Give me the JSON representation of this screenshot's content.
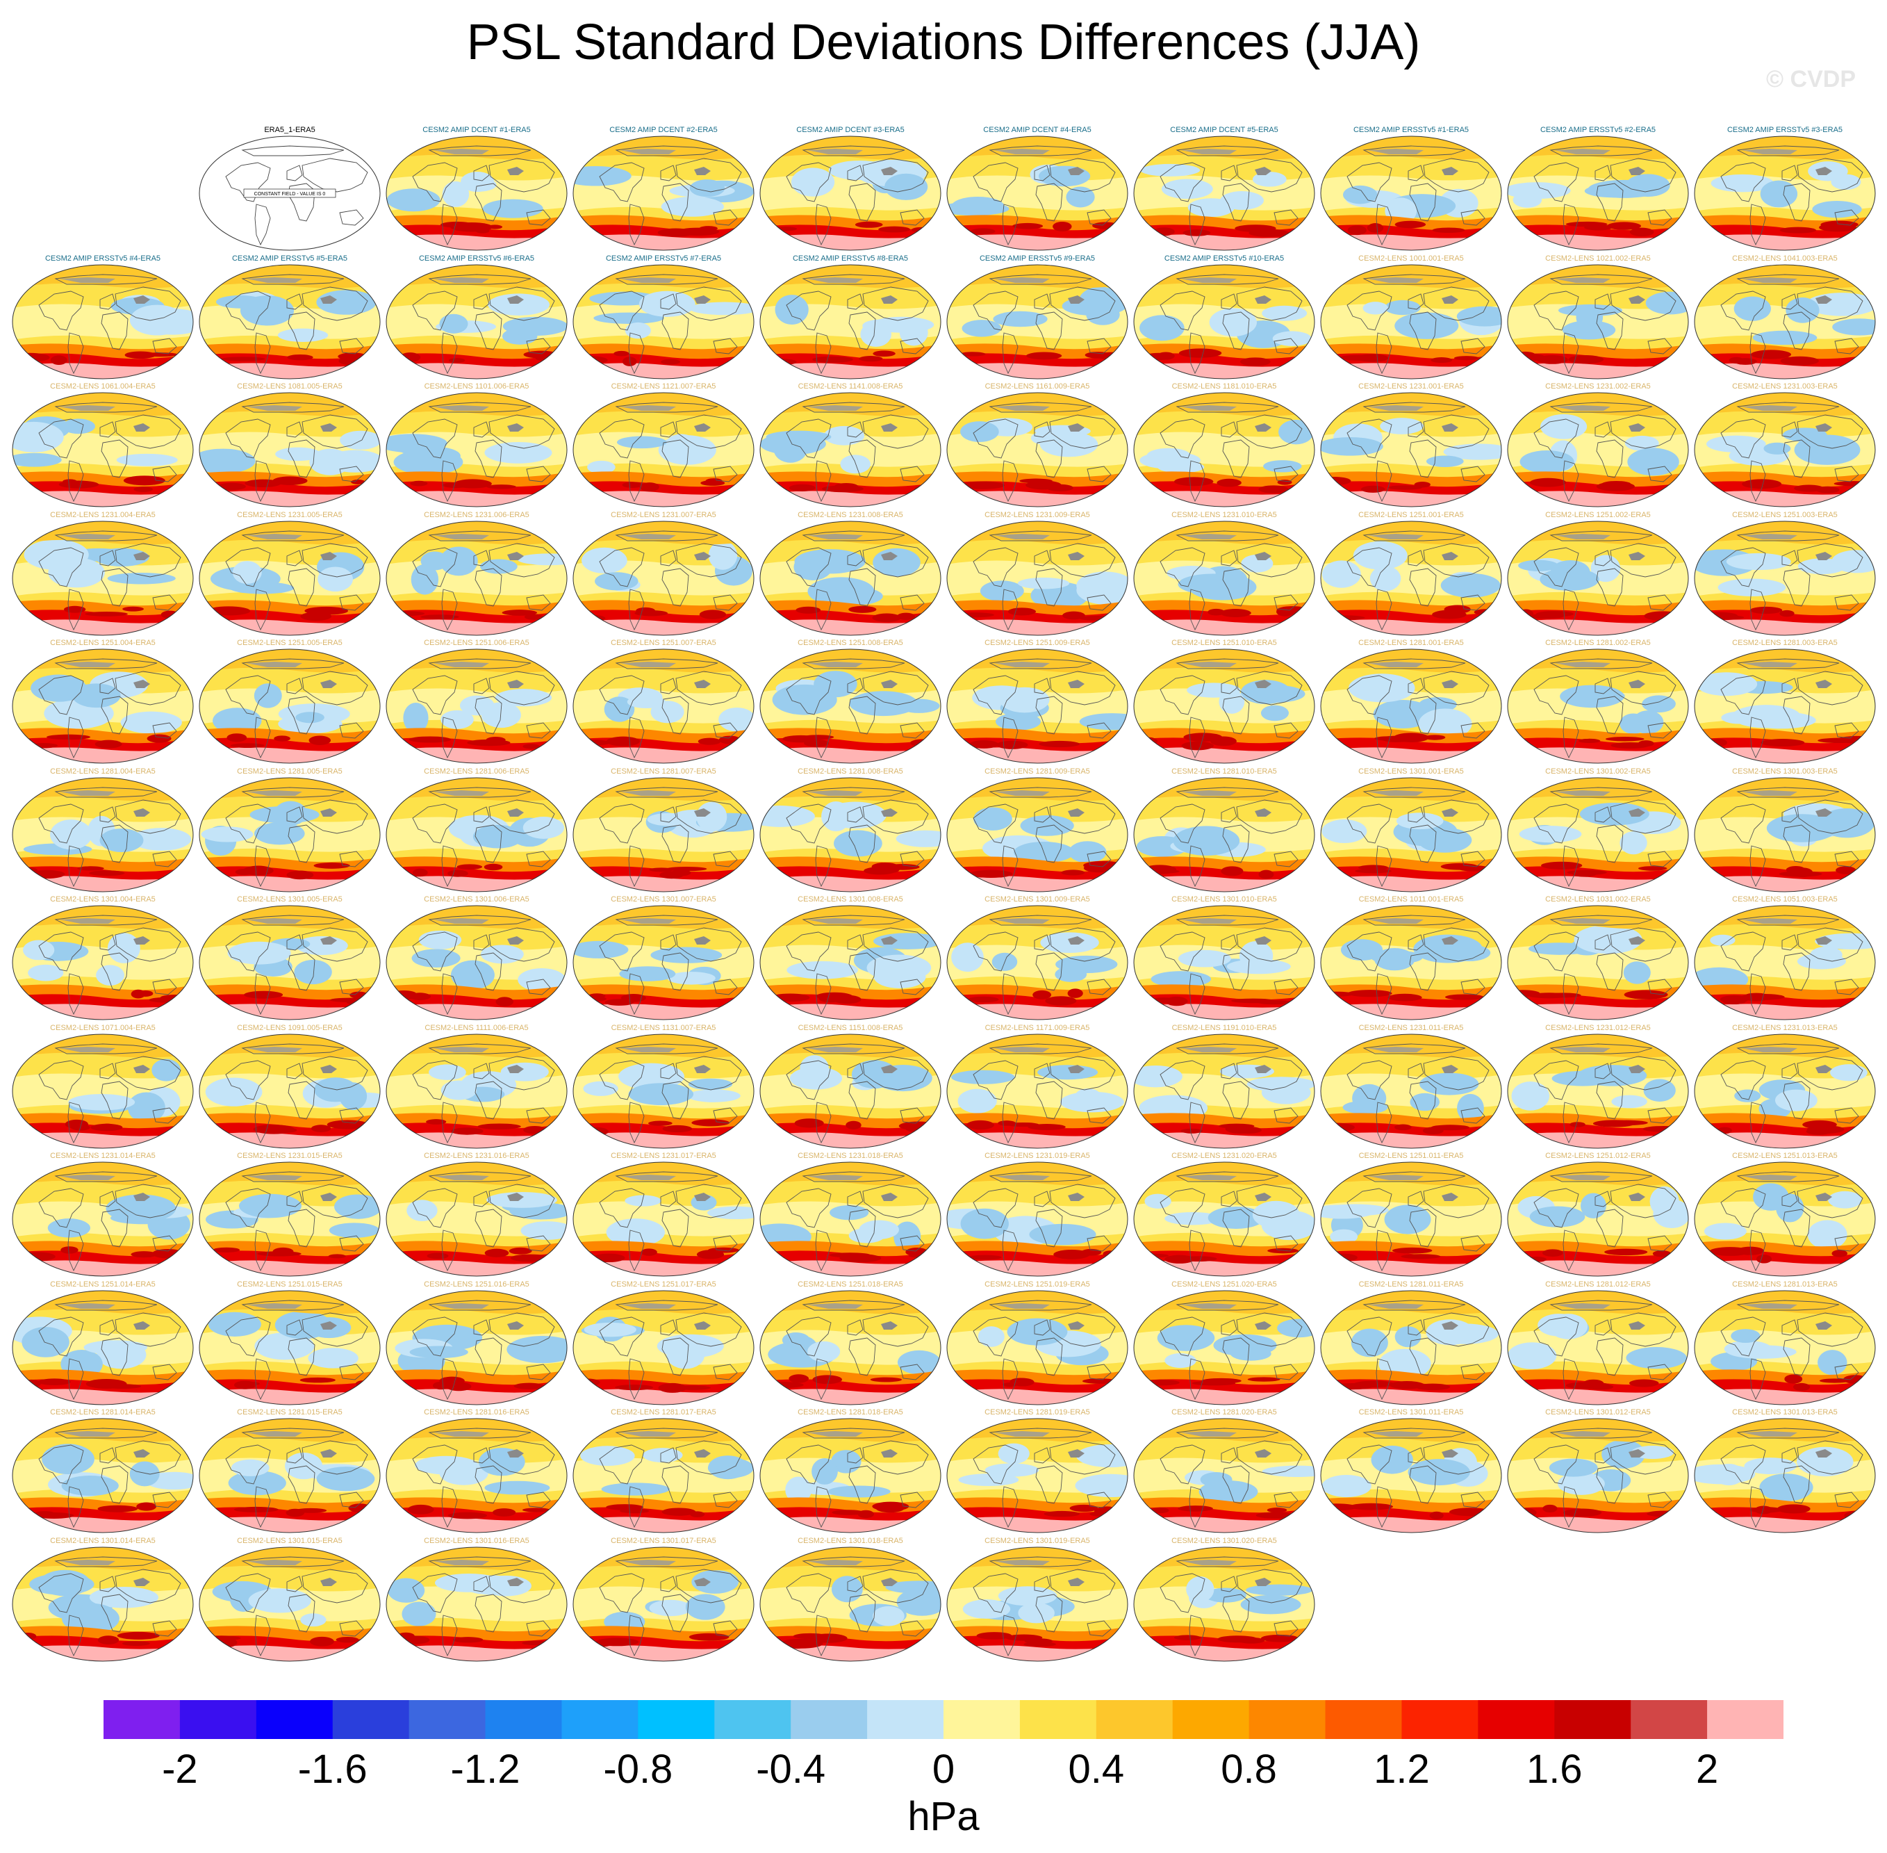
{
  "title": "PSL Standard Deviations Differences (JJA)",
  "copyright": "© CVDP",
  "units": "hPa",
  "constant_field_text": "CONSTANT FIELD - VALUE IS 0",
  "label_colors": {
    "obs": "#000000",
    "amip": "#1a6e8a",
    "lens": "#d9b56b"
  },
  "colorbar": {
    "colors": [
      "#7f1fef",
      "#3a0ff0",
      "#0a00fc",
      "#2a3fdc",
      "#3c67e0",
      "#1e82f0",
      "#1ea0fa",
      "#00c0ff",
      "#4ec4f0",
      "#9acdee",
      "#c4e4f8",
      "#fff59a",
      "#fde24a",
      "#fdc72c",
      "#fda800",
      "#fd8700",
      "#fd5a00",
      "#fc2300",
      "#e60000",
      "#c80000",
      "#d24646",
      "#ffb4b4"
    ],
    "tick_labels": [
      "-2",
      "-1.6",
      "-1.2",
      "-0.8",
      "-0.4",
      "0",
      "0.4",
      "0.8",
      "1.2",
      "1.6",
      "2"
    ],
    "tick_boundary_index": [
      1,
      3,
      5,
      7,
      9,
      11,
      13,
      15,
      17,
      19,
      21
    ]
  },
  "panels": [
    {
      "label": "ERA5_1-ERA5",
      "kind": "obs",
      "constant": true
    },
    {
      "label": "CESM2 AMIP DCENT #1-ERA5",
      "kind": "amip"
    },
    {
      "label": "CESM2 AMIP DCENT #2-ERA5",
      "kind": "amip"
    },
    {
      "label": "CESM2 AMIP DCENT #3-ERA5",
      "kind": "amip"
    },
    {
      "label": "CESM2 AMIP DCENT #4-ERA5",
      "kind": "amip"
    },
    {
      "label": "CESM2 AMIP DCENT #5-ERA5",
      "kind": "amip"
    },
    {
      "label": "CESM2 AMIP ERSSTv5 #1-ERA5",
      "kind": "amip"
    },
    {
      "label": "CESM2 AMIP ERSSTv5 #2-ERA5",
      "kind": "amip"
    },
    {
      "label": "CESM2 AMIP ERSSTv5 #3-ERA5",
      "kind": "amip"
    },
    {
      "label": "CESM2 AMIP ERSSTv5 #4-ERA5",
      "kind": "amip"
    },
    {
      "label": "CESM2 AMIP ERSSTv5 #5-ERA5",
      "kind": "amip"
    },
    {
      "label": "CESM2 AMIP ERSSTv5 #6-ERA5",
      "kind": "amip"
    },
    {
      "label": "CESM2 AMIP ERSSTv5 #7-ERA5",
      "kind": "amip"
    },
    {
      "label": "CESM2 AMIP ERSSTv5 #8-ERA5",
      "kind": "amip"
    },
    {
      "label": "CESM2 AMIP ERSSTv5 #9-ERA5",
      "kind": "amip"
    },
    {
      "label": "CESM2 AMIP ERSSTv5 #10-ERA5",
      "kind": "amip"
    },
    {
      "label": "CESM2-LENS 1001.001-ERA5",
      "kind": "lens"
    },
    {
      "label": "CESM2-LENS 1021.002-ERA5",
      "kind": "lens"
    },
    {
      "label": "CESM2-LENS 1041.003-ERA5",
      "kind": "lens"
    },
    {
      "label": "CESM2-LENS 1061.004-ERA5",
      "kind": "lens"
    },
    {
      "label": "CESM2-LENS 1081.005-ERA5",
      "kind": "lens"
    },
    {
      "label": "CESM2-LENS 1101.006-ERA5",
      "kind": "lens"
    },
    {
      "label": "CESM2-LENS 1121.007-ERA5",
      "kind": "lens"
    },
    {
      "label": "CESM2-LENS 1141.008-ERA5",
      "kind": "lens"
    },
    {
      "label": "CESM2-LENS 1161.009-ERA5",
      "kind": "lens"
    },
    {
      "label": "CESM2-LENS 1181.010-ERA5",
      "kind": "lens"
    },
    {
      "label": "CESM2-LENS 1231.001-ERA5",
      "kind": "lens"
    },
    {
      "label": "CESM2-LENS 1231.002-ERA5",
      "kind": "lens"
    },
    {
      "label": "CESM2-LENS 1231.003-ERA5",
      "kind": "lens"
    },
    {
      "label": "CESM2-LENS 1231.004-ERA5",
      "kind": "lens"
    },
    {
      "label": "CESM2-LENS 1231.005-ERA5",
      "kind": "lens"
    },
    {
      "label": "CESM2-LENS 1231.006-ERA5",
      "kind": "lens"
    },
    {
      "label": "CESM2-LENS 1231.007-ERA5",
      "kind": "lens"
    },
    {
      "label": "CESM2-LENS 1231.008-ERA5",
      "kind": "lens"
    },
    {
      "label": "CESM2-LENS 1231.009-ERA5",
      "kind": "lens"
    },
    {
      "label": "CESM2-LENS 1231.010-ERA5",
      "kind": "lens"
    },
    {
      "label": "CESM2-LENS 1251.001-ERA5",
      "kind": "lens"
    },
    {
      "label": "CESM2-LENS 1251.002-ERA5",
      "kind": "lens"
    },
    {
      "label": "CESM2-LENS 1251.003-ERA5",
      "kind": "lens"
    },
    {
      "label": "CESM2-LENS 1251.004-ERA5",
      "kind": "lens"
    },
    {
      "label": "CESM2-LENS 1251.005-ERA5",
      "kind": "lens"
    },
    {
      "label": "CESM2-LENS 1251.006-ERA5",
      "kind": "lens"
    },
    {
      "label": "CESM2-LENS 1251.007-ERA5",
      "kind": "lens"
    },
    {
      "label": "CESM2-LENS 1251.008-ERA5",
      "kind": "lens"
    },
    {
      "label": "CESM2-LENS 1251.009-ERA5",
      "kind": "lens"
    },
    {
      "label": "CESM2-LENS 1251.010-ERA5",
      "kind": "lens"
    },
    {
      "label": "CESM2-LENS 1281.001-ERA5",
      "kind": "lens"
    },
    {
      "label": "CESM2-LENS 1281.002-ERA5",
      "kind": "lens"
    },
    {
      "label": "CESM2-LENS 1281.003-ERA5",
      "kind": "lens"
    },
    {
      "label": "CESM2-LENS 1281.004-ERA5",
      "kind": "lens"
    },
    {
      "label": "CESM2-LENS 1281.005-ERA5",
      "kind": "lens"
    },
    {
      "label": "CESM2-LENS 1281.006-ERA5",
      "kind": "lens"
    },
    {
      "label": "CESM2-LENS 1281.007-ERA5",
      "kind": "lens"
    },
    {
      "label": "CESM2-LENS 1281.008-ERA5",
      "kind": "lens"
    },
    {
      "label": "CESM2-LENS 1281.009-ERA5",
      "kind": "lens"
    },
    {
      "label": "CESM2-LENS 1281.010-ERA5",
      "kind": "lens"
    },
    {
      "label": "CESM2-LENS 1301.001-ERA5",
      "kind": "lens"
    },
    {
      "label": "CESM2-LENS 1301.002-ERA5",
      "kind": "lens"
    },
    {
      "label": "CESM2-LENS 1301.003-ERA5",
      "kind": "lens"
    },
    {
      "label": "CESM2-LENS 1301.004-ERA5",
      "kind": "lens"
    },
    {
      "label": "CESM2-LENS 1301.005-ERA5",
      "kind": "lens"
    },
    {
      "label": "CESM2-LENS 1301.006-ERA5",
      "kind": "lens"
    },
    {
      "label": "CESM2-LENS 1301.007-ERA5",
      "kind": "lens"
    },
    {
      "label": "CESM2-LENS 1301.008-ERA5",
      "kind": "lens"
    },
    {
      "label": "CESM2-LENS 1301.009-ERA5",
      "kind": "lens"
    },
    {
      "label": "CESM2-LENS 1301.010-ERA5",
      "kind": "lens"
    },
    {
      "label": "CESM2-LENS 1011.001-ERA5",
      "kind": "lens"
    },
    {
      "label": "CESM2-LENS 1031.002-ERA5",
      "kind": "lens"
    },
    {
      "label": "CESM2-LENS 1051.003-ERA5",
      "kind": "lens"
    },
    {
      "label": "CESM2-LENS 1071.004-ERA5",
      "kind": "lens"
    },
    {
      "label": "CESM2-LENS 1091.005-ERA5",
      "kind": "lens"
    },
    {
      "label": "CESM2-LENS 1111.006-ERA5",
      "kind": "lens"
    },
    {
      "label": "CESM2-LENS 1131.007-ERA5",
      "kind": "lens"
    },
    {
      "label": "CESM2-LENS 1151.008-ERA5",
      "kind": "lens"
    },
    {
      "label": "CESM2-LENS 1171.009-ERA5",
      "kind": "lens"
    },
    {
      "label": "CESM2-LENS 1191.010-ERA5",
      "kind": "lens"
    },
    {
      "label": "CESM2-LENS 1231.011-ERA5",
      "kind": "lens"
    },
    {
      "label": "CESM2-LENS 1231.012-ERA5",
      "kind": "lens"
    },
    {
      "label": "CESM2-LENS 1231.013-ERA5",
      "kind": "lens"
    },
    {
      "label": "CESM2-LENS 1231.014-ERA5",
      "kind": "lens"
    },
    {
      "label": "CESM2-LENS 1231.015-ERA5",
      "kind": "lens"
    },
    {
      "label": "CESM2-LENS 1231.016-ERA5",
      "kind": "lens"
    },
    {
      "label": "CESM2-LENS 1231.017-ERA5",
      "kind": "lens"
    },
    {
      "label": "CESM2-LENS 1231.018-ERA5",
      "kind": "lens"
    },
    {
      "label": "CESM2-LENS 1231.019-ERA5",
      "kind": "lens"
    },
    {
      "label": "CESM2-LENS 1231.020-ERA5",
      "kind": "lens"
    },
    {
      "label": "CESM2-LENS 1251.011-ERA5",
      "kind": "lens"
    },
    {
      "label": "CESM2-LENS 1251.012-ERA5",
      "kind": "lens"
    },
    {
      "label": "CESM2-LENS 1251.013-ERA5",
      "kind": "lens"
    },
    {
      "label": "CESM2-LENS 1251.014-ERA5",
      "kind": "lens"
    },
    {
      "label": "CESM2-LENS 1251.015-ERA5",
      "kind": "lens"
    },
    {
      "label": "CESM2-LENS 1251.016-ERA5",
      "kind": "lens"
    },
    {
      "label": "CESM2-LENS 1251.017-ERA5",
      "kind": "lens"
    },
    {
      "label": "CESM2-LENS 1251.018-ERA5",
      "kind": "lens"
    },
    {
      "label": "CESM2-LENS 1251.019-ERA5",
      "kind": "lens"
    },
    {
      "label": "CESM2-LENS 1251.020-ERA5",
      "kind": "lens"
    },
    {
      "label": "CESM2-LENS 1281.011-ERA5",
      "kind": "lens"
    },
    {
      "label": "CESM2-LENS 1281.012-ERA5",
      "kind": "lens"
    },
    {
      "label": "CESM2-LENS 1281.013-ERA5",
      "kind": "lens"
    },
    {
      "label": "CESM2-LENS 1281.014-ERA5",
      "kind": "lens"
    },
    {
      "label": "CESM2-LENS 1281.015-ERA5",
      "kind": "lens"
    },
    {
      "label": "CESM2-LENS 1281.016-ERA5",
      "kind": "lens"
    },
    {
      "label": "CESM2-LENS 1281.017-ERA5",
      "kind": "lens"
    },
    {
      "label": "CESM2-LENS 1281.018-ERA5",
      "kind": "lens"
    },
    {
      "label": "CESM2-LENS 1281.019-ERA5",
      "kind": "lens"
    },
    {
      "label": "CESM2-LENS 1281.020-ERA5",
      "kind": "lens"
    },
    {
      "label": "CESM2-LENS 1301.011-ERA5",
      "kind": "lens"
    },
    {
      "label": "CESM2-LENS 1301.012-ERA5",
      "kind": "lens"
    },
    {
      "label": "CESM2-LENS 1301.013-ERA5",
      "kind": "lens"
    },
    {
      "label": "CESM2-LENS 1301.014-ERA5",
      "kind": "lens"
    },
    {
      "label": "CESM2-LENS 1301.015-ERA5",
      "kind": "lens"
    },
    {
      "label": "CESM2-LENS 1301.016-ERA5",
      "kind": "lens"
    },
    {
      "label": "CESM2-LENS 1301.017-ERA5",
      "kind": "lens"
    },
    {
      "label": "CESM2-LENS 1301.018-ERA5",
      "kind": "lens"
    },
    {
      "label": "CESM2-LENS 1301.019-ERA5",
      "kind": "lens"
    },
    {
      "label": "CESM2-LENS 1301.020-ERA5",
      "kind": "lens"
    }
  ]
}
